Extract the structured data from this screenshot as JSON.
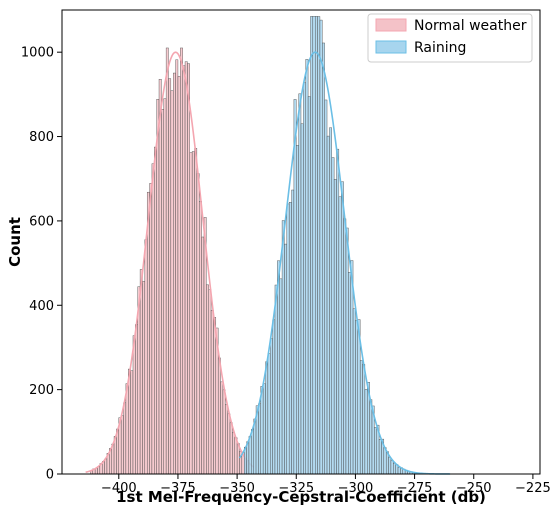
{
  "chart_data": {
    "type": "histogram",
    "title": "",
    "xlabel": "1st Mel-Frequency-Cepstral-Coefficient (db)",
    "ylabel": "Count",
    "xlim": [
      -424,
      -222
    ],
    "ylim": [
      0,
      1100
    ],
    "xticks": [
      -400,
      -375,
      -350,
      -325,
      -300,
      -275,
      -250,
      -225
    ],
    "yticks": [
      0,
      200,
      400,
      600,
      800,
      1000
    ],
    "legend_position": "top-right",
    "grid": false,
    "bin_width": 1,
    "series": [
      {
        "name": "Normal weather",
        "color": "#f4c2c8",
        "edge_color": "#444444",
        "kde_color": "#f4a6b0",
        "x_range": [
          -412,
          -345
        ],
        "mean": -376,
        "std": 11.5,
        "peak": 1000,
        "max_bar": 1010
      },
      {
        "name": "Raining",
        "color": "#a7d5ee",
        "edge_color": "#444444",
        "kde_color": "#6bbfe6",
        "x_range": [
          -347,
          -262
        ],
        "mean": -317,
        "std": 12.5,
        "peak": 1000,
        "max_bar": 1085
      }
    ]
  }
}
